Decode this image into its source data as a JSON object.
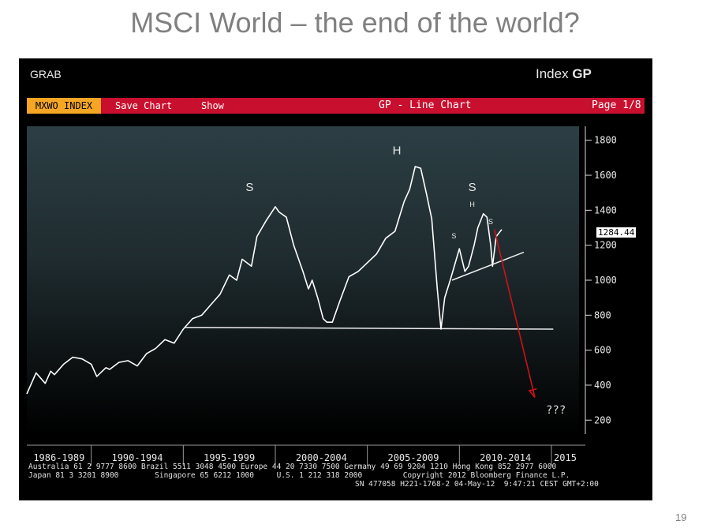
{
  "slide": {
    "title": "MSCI World – the end of the world?",
    "page_number": "19"
  },
  "terminal": {
    "top_left": "GRAB",
    "top_right_prefix": "Index",
    "top_right_cmd": "GP",
    "ticker": "MXWO INDEX",
    "save_chart": "Save Chart",
    "show": "Show",
    "chart_title": "GP - Line Chart",
    "page": "Page 1/8",
    "last_value": "1284.44",
    "question": "???",
    "footer_line1": "Australia 61 2 9777 8600 Brazil 5511 3048 4500 Europe 44 20 7330 7500 Germany 49 69 9204 1210 Hong Kong 852 2977 6000",
    "footer_line2": "Japan 81 3 3201 8900        Singapore 65 6212 1000     U.S. 1 212 318 2000         Copyright 2012 Bloomberg Finance L.P.",
    "footer_line3": "SN 477058 H221-1768-2 04-May-12  9:47:21 CEST GMT+2:00",
    "colors": {
      "bar": "#c8102e",
      "ticker_bg": "#f5a623",
      "line": "#ffffff",
      "arrow": "#d0101a"
    }
  },
  "chart_data": {
    "type": "line",
    "title": "GP - Line Chart",
    "ylim": [
      120,
      1880
    ],
    "xlim": [
      1986.5,
      2016.5
    ],
    "yticks": [
      200,
      400,
      600,
      800,
      1000,
      1200,
      1400,
      1600,
      1800
    ],
    "xtick_labels": [
      "1986-1989",
      "1990-1994",
      "1995-1999",
      "2000-2004",
      "2005-2009",
      "2010-2014",
      "2015"
    ],
    "xtick_boundaries": [
      1990,
      1995,
      2000,
      2005,
      2010,
      2015
    ],
    "series": [
      {
        "x": [
          1986.5,
          1987.0,
          1987.5,
          1987.8,
          1988.0,
          1988.5,
          1989.0,
          1989.5,
          1990.0,
          1990.3,
          1990.6,
          1990.8,
          1991.0,
          1991.5,
          1992.0,
          1992.5,
          1993.0,
          1993.5,
          1994.0,
          1994.5,
          1995.0,
          1995.5,
          1996.0,
          1996.5,
          1997.0,
          1997.5,
          1997.9,
          1998.2,
          1998.7,
          1999.0,
          1999.5,
          2000.0,
          2000.2,
          2000.6,
          2001.0,
          2001.5,
          2001.8,
          2002.0,
          2002.3,
          2002.6,
          2002.8,
          2003.1,
          2003.5,
          2004.0,
          2004.5,
          2005.0,
          2005.5,
          2006.0,
          2006.5,
          2007.0,
          2007.3,
          2007.6,
          2007.9,
          2008.2,
          2008.5,
          2008.8,
          2009.0,
          2009.2,
          2009.5,
          2010.0,
          2010.3,
          2010.5,
          2010.8,
          2011.0,
          2011.3,
          2011.5,
          2011.7,
          2011.8,
          2012.0,
          2012.3
        ],
        "values": [
          350,
          470,
          410,
          480,
          460,
          520,
          560,
          550,
          520,
          450,
          480,
          500,
          490,
          530,
          540,
          510,
          580,
          610,
          660,
          640,
          720,
          780,
          800,
          860,
          920,
          1030,
          1000,
          1120,
          1080,
          1250,
          1340,
          1420,
          1390,
          1360,
          1200,
          1050,
          950,
          1000,
          900,
          780,
          760,
          760,
          880,
          1020,
          1050,
          1100,
          1150,
          1240,
          1280,
          1450,
          1520,
          1650,
          1640,
          1500,
          1350,
          950,
          720,
          900,
          1000,
          1180,
          1050,
          1080,
          1200,
          1300,
          1380,
          1360,
          1200,
          1080,
          1250,
          1290
        ]
      }
    ],
    "annotations": [
      {
        "text": "S",
        "x": 1998.6,
        "y": 1510
      },
      {
        "text": "H",
        "x": 2006.6,
        "y": 1720
      },
      {
        "text": "S",
        "x": 2010.7,
        "y": 1510
      },
      {
        "text": "S",
        "x": 2009.7,
        "y": 1240
      },
      {
        "text": "H",
        "x": 2010.7,
        "y": 1420
      },
      {
        "text": "S",
        "x": 2011.7,
        "y": 1320
      }
    ],
    "neckline": {
      "x": [
        1995.1,
        2015.1
      ],
      "y": [
        730,
        720
      ]
    },
    "trendline": {
      "x": [
        2009.6,
        2013.5
      ],
      "y": [
        1000,
        1160
      ]
    },
    "arrow": {
      "from": [
        2011.9,
        1290
      ],
      "to": [
        2014.1,
        330
      ]
    },
    "grid": false
  }
}
